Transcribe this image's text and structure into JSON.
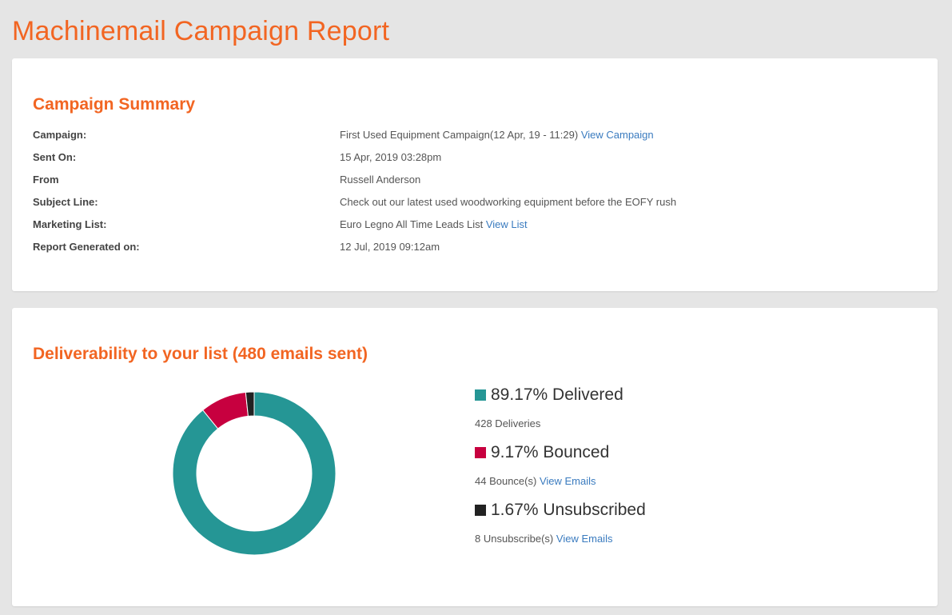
{
  "page": {
    "title": "Machinemail Campaign Report"
  },
  "summary": {
    "title": "Campaign Summary",
    "rows": [
      {
        "label": "Campaign:",
        "value": "First Used Equipment Campaign(12 Apr, 19 - 11:29)",
        "link": "View Campaign"
      },
      {
        "label": "Sent On:",
        "value": "15 Apr, 2019 03:28pm"
      },
      {
        "label": "From",
        "value": "Russell Anderson"
      },
      {
        "label": "Subject Line:",
        "value": "Check out our latest used woodworking equipment before the EOFY rush"
      },
      {
        "label": "Marketing List:",
        "value": "Euro Legno All Time Leads List",
        "link": "View List"
      },
      {
        "label": "Report Generated on:",
        "value": "12 Jul, 2019 09:12am"
      }
    ]
  },
  "deliverability": {
    "title": "Deliverability to your list (480 emails sent)",
    "legend": [
      {
        "label": "89.17% Delivered",
        "sub": "428 Deliveries",
        "link": "",
        "color": "#259695"
      },
      {
        "label": "9.17% Bounced",
        "sub": "44 Bounce(s)",
        "link": "View Emails",
        "color": "#c7003f"
      },
      {
        "label": "1.67% Unsubscribed",
        "sub": "8 Unsubscribe(s)",
        "link": "View Emails",
        "color": "#222222"
      }
    ]
  },
  "chart_data": {
    "type": "pie",
    "categories": [
      "Delivered",
      "Bounced",
      "Unsubscribed"
    ],
    "values": [
      89.17,
      9.17,
      1.67
    ],
    "colors": [
      "#259695",
      "#c7003f",
      "#222222"
    ],
    "title": "",
    "donut": true
  }
}
